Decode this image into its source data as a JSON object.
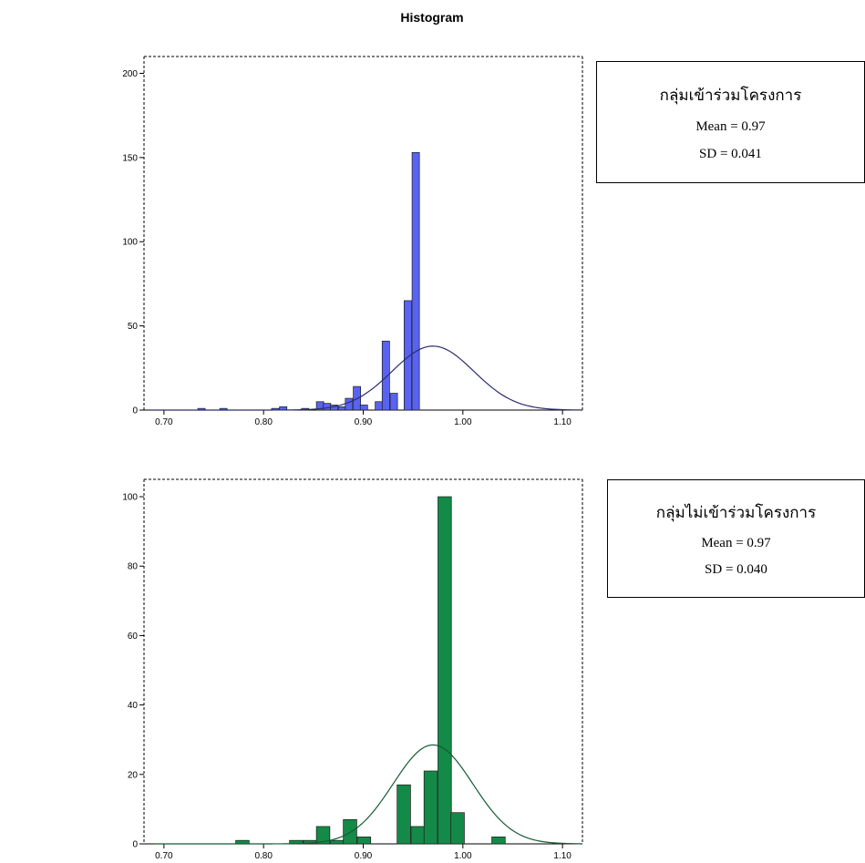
{
  "title": "Histogram",
  "colors": {
    "top_bars": "#5963ef",
    "bottom_bars": "#138a47",
    "curve_top": "#2b2d6e",
    "curve_bottom": "#145a32"
  },
  "legends": [
    {
      "group": "กลุ่มเข้าร่วมโครงการ",
      "mean": "Mean = 0.97",
      "sd": "SD = 0.041"
    },
    {
      "group": "กลุ่มไม่เข้าร่วมโครงการ",
      "mean": "Mean = 0.97",
      "sd": "SD = 0.040"
    }
  ],
  "chart_data": [
    {
      "type": "bar",
      "title": "Histogram",
      "xlim": [
        0.68,
        1.12
      ],
      "ylim": [
        0,
        210
      ],
      "x_ticks": [
        0.7,
        0.8,
        0.9,
        1.0,
        1.1
      ],
      "x_tick_labels": [
        "0.70",
        "0.80",
        "0.90",
        "1.00",
        "1.10"
      ],
      "y_ticks": [
        0,
        50,
        100,
        150,
        200
      ],
      "y_tick_labels": [
        "0",
        "50",
        "100",
        "150",
        "200"
      ],
      "bin_width": 0.0074,
      "bins": [
        {
          "x": 0.734,
          "y": 1
        },
        {
          "x": 0.756,
          "y": 1
        },
        {
          "x": 0.808,
          "y": 1
        },
        {
          "x": 0.816,
          "y": 2
        },
        {
          "x": 0.838,
          "y": 1
        },
        {
          "x": 0.853,
          "y": 5
        },
        {
          "x": 0.86,
          "y": 4
        },
        {
          "x": 0.867,
          "y": 3
        },
        {
          "x": 0.875,
          "y": 2
        },
        {
          "x": 0.882,
          "y": 7
        },
        {
          "x": 0.89,
          "y": 14
        },
        {
          "x": 0.897,
          "y": 3
        },
        {
          "x": 0.912,
          "y": 5
        },
        {
          "x": 0.919,
          "y": 41
        },
        {
          "x": 0.927,
          "y": 10
        },
        {
          "x": 0.941,
          "y": 65
        },
        {
          "x": 0.949,
          "y": 153
        }
      ],
      "normal_curve": {
        "mean": 0.97,
        "sd": 0.041,
        "peak": 38
      },
      "grid": false,
      "legend_placement": "right"
    },
    {
      "type": "bar",
      "xlim": [
        0.68,
        1.12
      ],
      "ylim": [
        0,
        105
      ],
      "x_ticks": [
        0.7,
        0.8,
        0.9,
        1.0,
        1.1
      ],
      "x_tick_labels": [
        "0.70",
        "0.80",
        "0.90",
        "1.00",
        "1.10"
      ],
      "y_ticks": [
        0,
        20,
        40,
        60,
        80,
        100
      ],
      "y_tick_labels": [
        "0",
        "20",
        "40",
        "60",
        "80",
        "100"
      ],
      "bin_width": 0.0135,
      "bins": [
        {
          "x": 0.772,
          "y": 1
        },
        {
          "x": 0.826,
          "y": 1
        },
        {
          "x": 0.84,
          "y": 1
        },
        {
          "x": 0.853,
          "y": 5
        },
        {
          "x": 0.867,
          "y": 1
        },
        {
          "x": 0.88,
          "y": 7
        },
        {
          "x": 0.894,
          "y": 2
        },
        {
          "x": 0.934,
          "y": 17
        },
        {
          "x": 0.948,
          "y": 5
        },
        {
          "x": 0.961,
          "y": 21
        },
        {
          "x": 0.975,
          "y": 100
        },
        {
          "x": 0.988,
          "y": 9
        },
        {
          "x": 1.029,
          "y": 2
        }
      ],
      "normal_curve": {
        "mean": 0.97,
        "sd": 0.04,
        "peak": 28.5
      },
      "grid": false,
      "legend_placement": "right"
    }
  ]
}
